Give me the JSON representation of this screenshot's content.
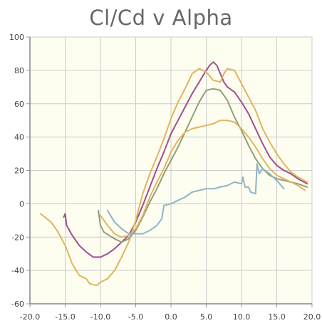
{
  "chart_data": {
    "type": "line",
    "title": "Cl/Cd v Alpha",
    "xlabel": "",
    "ylabel": "",
    "xlim": [
      -20,
      20
    ],
    "ylim": [
      -60,
      100
    ],
    "x_ticks": [
      "-20.0",
      "-15.0",
      "-10.0",
      "-5.0",
      "0.0",
      "5.0",
      "10.0",
      "15.0",
      "20.0"
    ],
    "y_ticks": [
      "-60",
      "-40",
      "-20",
      "0",
      "20",
      "40",
      "60",
      "80",
      "100"
    ],
    "grid": true,
    "legend": "none",
    "plot_background": "#fdfdf0",
    "series": [
      {
        "color": "#a04f8e",
        "points": [
          [
            -15.2,
            -8
          ],
          [
            -15,
            -6
          ],
          [
            -14.8,
            -13
          ],
          [
            -14,
            -19
          ],
          [
            -13,
            -25
          ],
          [
            -12,
            -29
          ],
          [
            -11,
            -32
          ],
          [
            -10,
            -32
          ],
          [
            -9,
            -30
          ],
          [
            -8,
            -27
          ],
          [
            -7,
            -23
          ],
          [
            -6,
            -19
          ],
          [
            -5,
            -11
          ],
          [
            -4,
            -1
          ],
          [
            -3,
            10
          ],
          [
            -2,
            21
          ],
          [
            -1,
            31
          ],
          [
            0,
            42
          ],
          [
            1,
            50
          ],
          [
            2,
            58
          ],
          [
            3,
            66
          ],
          [
            4,
            73
          ],
          [
            5,
            80
          ],
          [
            5.5,
            83
          ],
          [
            6,
            85
          ],
          [
            6.5,
            83
          ],
          [
            7,
            78
          ],
          [
            7.5,
            73
          ],
          [
            8,
            70
          ],
          [
            9,
            67
          ],
          [
            10,
            61
          ],
          [
            11,
            54
          ],
          [
            12,
            45
          ],
          [
            13,
            36
          ],
          [
            14,
            28
          ],
          [
            15,
            23
          ],
          [
            16,
            20
          ],
          [
            17,
            18
          ],
          [
            18,
            15
          ],
          [
            19.3,
            12
          ]
        ]
      },
      {
        "color": "#e0b560",
        "points": [
          [
            -18.5,
            -6
          ],
          [
            -17,
            -11
          ],
          [
            -16,
            -17
          ],
          [
            -15,
            -25
          ],
          [
            -14,
            -36
          ],
          [
            -13,
            -43
          ],
          [
            -12,
            -45
          ],
          [
            -11.5,
            -48
          ],
          [
            -10.5,
            -49
          ],
          [
            -10,
            -47
          ],
          [
            -9,
            -45
          ],
          [
            -8,
            -40
          ],
          [
            -7,
            -32
          ],
          [
            -6,
            -23
          ],
          [
            -5,
            -10
          ],
          [
            -4,
            6
          ],
          [
            -3,
            18
          ],
          [
            -2,
            28
          ],
          [
            -1,
            39
          ],
          [
            0,
            51
          ],
          [
            1,
            61
          ],
          [
            2,
            69
          ],
          [
            3,
            78
          ],
          [
            4,
            81
          ],
          [
            5,
            79
          ],
          [
            6,
            74
          ],
          [
            7,
            73
          ],
          [
            7.5,
            78
          ],
          [
            8,
            81
          ],
          [
            9,
            80
          ],
          [
            10,
            72
          ],
          [
            11,
            64
          ],
          [
            12,
            56
          ],
          [
            13,
            45
          ],
          [
            14,
            37
          ],
          [
            15,
            30
          ],
          [
            16,
            24
          ],
          [
            17,
            19
          ],
          [
            18,
            16
          ],
          [
            19.3,
            13
          ]
        ]
      },
      {
        "color": "#8ea07a",
        "points": [
          [
            -10.3,
            -4
          ],
          [
            -10,
            -13
          ],
          [
            -9.5,
            -17
          ],
          [
            -8,
            -21
          ],
          [
            -7,
            -23
          ],
          [
            -6,
            -21
          ],
          [
            -5,
            -16
          ],
          [
            -4,
            -8
          ],
          [
            -3,
            1
          ],
          [
            -2,
            9
          ],
          [
            -1,
            18
          ],
          [
            0,
            26
          ],
          [
            1,
            34
          ],
          [
            2,
            43
          ],
          [
            3,
            52
          ],
          [
            4,
            61
          ],
          [
            5,
            68
          ],
          [
            6,
            69
          ],
          [
            7,
            68
          ],
          [
            8,
            62
          ],
          [
            9,
            52
          ],
          [
            10,
            44
          ],
          [
            11,
            35
          ],
          [
            12,
            27
          ],
          [
            13,
            21
          ],
          [
            14,
            17
          ],
          [
            15,
            15
          ],
          [
            16,
            14
          ],
          [
            17,
            13
          ],
          [
            18,
            12
          ],
          [
            19.3,
            10
          ]
        ]
      },
      {
        "color": "#e0b560",
        "points": [
          [
            -10,
            -7
          ],
          [
            -9,
            -13
          ],
          [
            -8,
            -18
          ],
          [
            -7,
            -20
          ],
          [
            -6,
            -19
          ],
          [
            -5,
            -15
          ],
          [
            -4,
            -7
          ],
          [
            -3,
            4
          ],
          [
            -2,
            13
          ],
          [
            -1,
            21
          ],
          [
            0,
            31
          ],
          [
            1,
            38
          ],
          [
            2,
            43
          ],
          [
            3,
            45
          ],
          [
            4,
            46
          ],
          [
            5,
            47
          ],
          [
            6,
            48
          ],
          [
            7,
            50
          ],
          [
            8,
            50
          ],
          [
            9,
            49
          ],
          [
            10,
            45
          ],
          [
            11,
            40
          ],
          [
            12,
            34
          ],
          [
            13,
            27
          ],
          [
            14,
            21
          ],
          [
            15,
            17
          ],
          [
            16,
            15
          ],
          [
            17,
            13
          ],
          [
            18,
            11
          ],
          [
            19,
            8
          ]
        ]
      },
      {
        "color": "#8fb5c8",
        "points": [
          [
            -9,
            -4
          ],
          [
            -8,
            -11
          ],
          [
            -7,
            -15
          ],
          [
            -6,
            -18
          ],
          [
            -5,
            -18
          ],
          [
            -4,
            -18
          ],
          [
            -3,
            -16
          ],
          [
            -2,
            -13
          ],
          [
            -1.3,
            -9
          ],
          [
            -1,
            -1
          ],
          [
            0,
            0
          ],
          [
            1,
            2
          ],
          [
            2,
            4
          ],
          [
            3,
            7
          ],
          [
            4,
            8
          ],
          [
            5,
            9
          ],
          [
            6,
            9
          ],
          [
            7,
            10
          ],
          [
            8,
            11
          ],
          [
            9,
            13
          ],
          [
            10,
            12
          ],
          [
            10.2,
            16
          ],
          [
            10.5,
            10
          ],
          [
            11,
            10
          ],
          [
            11.3,
            7
          ],
          [
            12,
            6
          ],
          [
            12.2,
            24
          ],
          [
            12.5,
            18
          ],
          [
            13,
            21
          ],
          [
            14,
            18
          ],
          [
            15,
            14
          ],
          [
            16,
            9
          ]
        ]
      }
    ]
  }
}
